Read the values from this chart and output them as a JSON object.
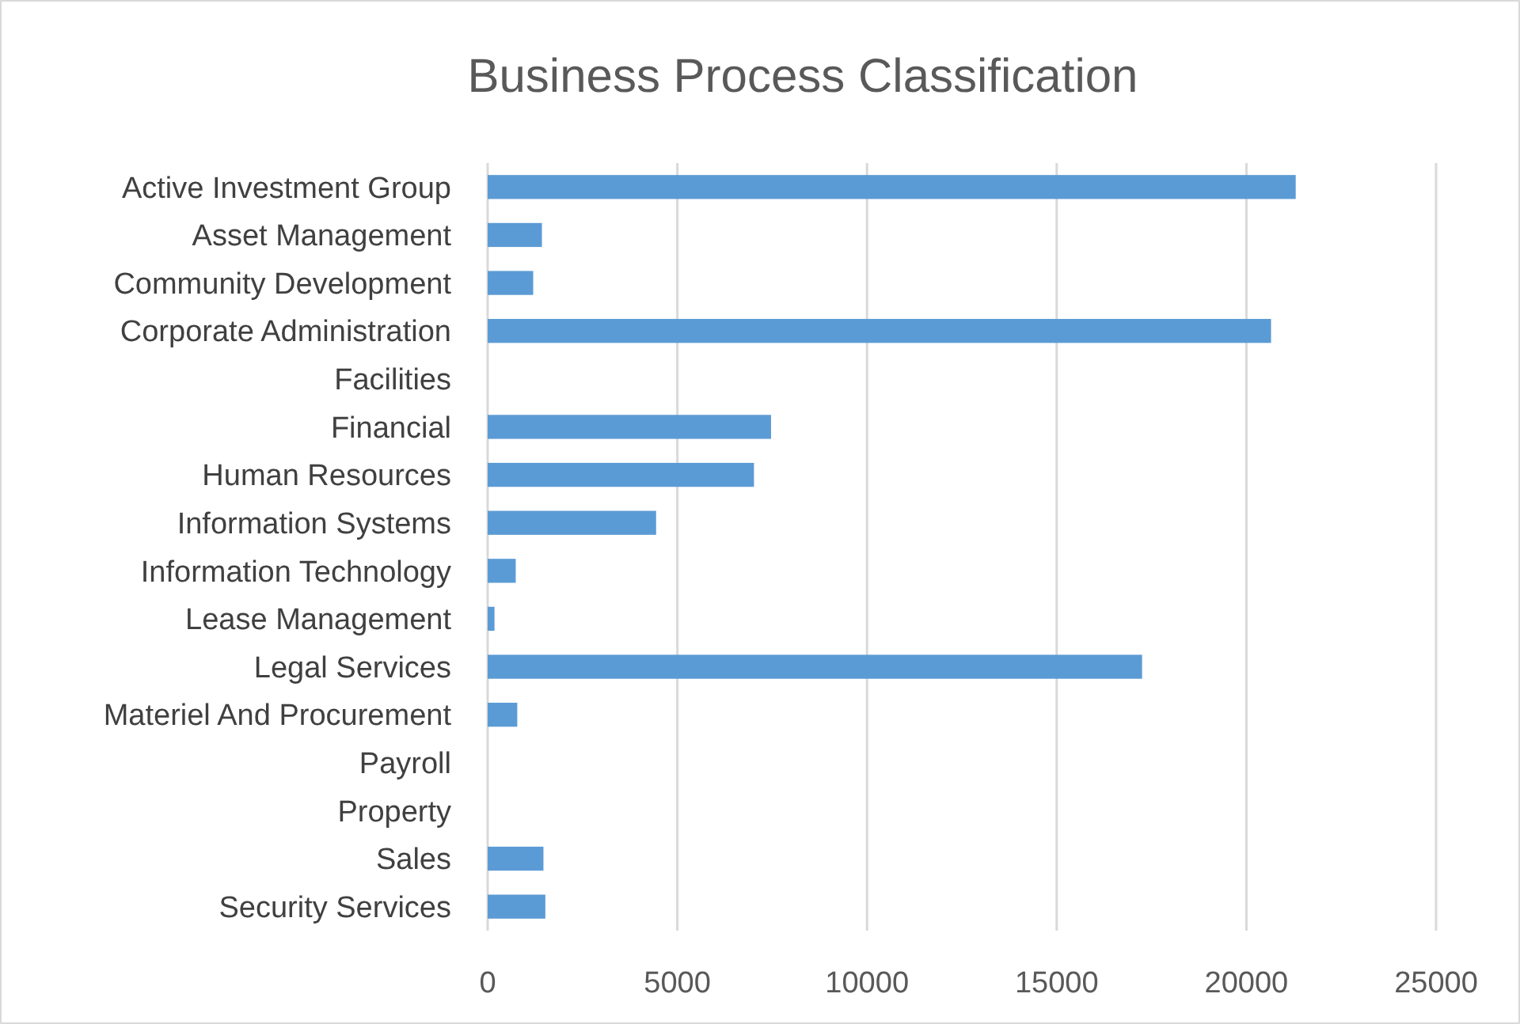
{
  "chart_data": {
    "type": "bar",
    "orientation": "horizontal",
    "title": "Business Process Classification",
    "categories": [
      "Active Investment Group",
      "Asset Management",
      "Community Development",
      "Corporate Administration",
      "Facilities",
      "Financial",
      "Human Resources",
      "Information Systems",
      "Information Technology",
      "Lease Management",
      "Legal Services",
      "Materiel And Procurement",
      "Payroll",
      "Property",
      "Sales",
      "Security Services"
    ],
    "values": [
      21300,
      1430,
      1200,
      20650,
      0,
      7470,
      7020,
      4440,
      740,
      180,
      17250,
      780,
      0,
      0,
      1470,
      1520
    ],
    "color": "#5b9bd5",
    "xlim": [
      0,
      25000
    ],
    "xticks": [
      0,
      5000,
      10000,
      15000,
      20000,
      25000
    ],
    "grid": "x"
  }
}
